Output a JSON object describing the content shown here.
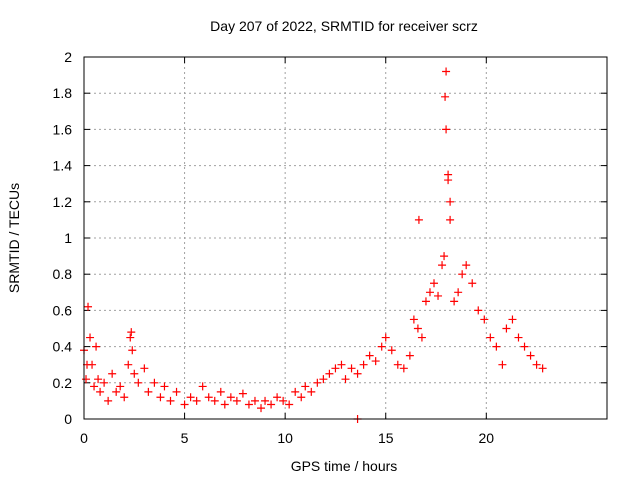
{
  "colors": {
    "series": "#ff0000",
    "grid": "#a0a0a0",
    "axis": "#000000"
  },
  "chart_data": {
    "type": "scatter",
    "title": "Day 207 of 2022, SRMTID for receiver scrz",
    "xlabel": "GPS time / hours",
    "ylabel": "SRMTID / TECUs",
    "xlim": [
      0,
      26
    ],
    "ylim": [
      0,
      2
    ],
    "xticks": [
      0,
      5,
      10,
      15,
      20
    ],
    "yticks": [
      0,
      0.2,
      0.4,
      0.6,
      0.8,
      1,
      1.2,
      1.4,
      1.6,
      1.8,
      2
    ],
    "xtick_labels": [
      "0",
      "5",
      "10",
      "15",
      "20"
    ],
    "ytick_labels": [
      "0",
      "0.2",
      "0.4",
      "0.6",
      "0.8",
      "1",
      "1.2",
      "1.4",
      "1.6",
      "1.8",
      "2"
    ],
    "grid": true,
    "marker": "+",
    "series": [
      {
        "name": "SRMTID",
        "x": [
          0.0,
          0.1,
          0.15,
          0.2,
          0.3,
          0.4,
          0.5,
          0.6,
          0.7,
          0.8,
          1.0,
          1.2,
          1.4,
          1.6,
          1.8,
          2.0,
          2.2,
          2.3,
          2.4,
          2.5,
          2.7,
          3.0,
          3.2,
          3.5,
          3.8,
          4.0,
          4.3,
          4.6,
          5.0,
          5.3,
          5.6,
          5.9,
          6.2,
          6.5,
          6.8,
          7.0,
          7.3,
          7.6,
          7.9,
          8.2,
          8.5,
          8.8,
          9.0,
          9.3,
          9.6,
          9.9,
          10.2,
          10.5,
          10.8,
          11.0,
          11.3,
          11.6,
          11.9,
          12.2,
          12.5,
          12.8,
          13.0,
          13.3,
          13.6,
          13.9,
          14.2,
          14.5,
          14.8,
          15.0,
          15.3,
          15.6,
          15.9,
          16.2,
          16.4,
          16.6,
          16.8,
          17.0,
          17.2,
          17.4,
          17.6,
          17.8,
          17.9,
          18.0,
          18.1,
          18.2,
          18.4,
          18.6,
          18.8,
          19.0,
          19.3,
          19.6,
          19.9,
          20.2,
          20.5,
          20.8,
          21.0,
          21.3,
          21.6,
          21.9,
          22.2,
          22.5,
          22.8
        ],
        "y": [
          0.38,
          0.22,
          0.3,
          0.62,
          0.45,
          0.3,
          0.18,
          0.4,
          0.22,
          0.15,
          0.2,
          0.1,
          0.25,
          0.15,
          0.18,
          0.12,
          0.3,
          0.45,
          0.38,
          0.25,
          0.2,
          0.28,
          0.15,
          0.2,
          0.12,
          0.18,
          0.1,
          0.15,
          0.08,
          0.12,
          0.1,
          0.18,
          0.12,
          0.1,
          0.15,
          0.08,
          0.12,
          0.1,
          0.14,
          0.08,
          0.1,
          0.06,
          0.1,
          0.08,
          0.12,
          0.1,
          0.08,
          0.15,
          0.12,
          0.18,
          0.15,
          0.2,
          0.22,
          0.25,
          0.28,
          0.3,
          0.22,
          0.28,
          0.25,
          0.3,
          0.35,
          0.32,
          0.4,
          0.45,
          0.38,
          0.3,
          0.28,
          0.35,
          0.55,
          0.5,
          0.45,
          0.65,
          0.7,
          0.75,
          0.68,
          0.85,
          0.9,
          1.92,
          1.35,
          1.1,
          0.65,
          0.7,
          0.8,
          0.85,
          0.75,
          0.6,
          0.55,
          0.45,
          0.4,
          0.3,
          0.5,
          0.55,
          0.45,
          0.4,
          0.35,
          0.3,
          0.28
        ]
      }
    ],
    "special_points": [
      {
        "x": 17.95,
        "y": 1.78
      },
      {
        "x": 18.0,
        "y": 1.6
      },
      {
        "x": 18.1,
        "y": 1.32
      },
      {
        "x": 16.65,
        "y": 1.1
      },
      {
        "x": 18.2,
        "y": 1.2
      },
      {
        "x": 2.35,
        "y": 0.48
      },
      {
        "x": 13.6,
        "y": 0.0
      }
    ]
  }
}
